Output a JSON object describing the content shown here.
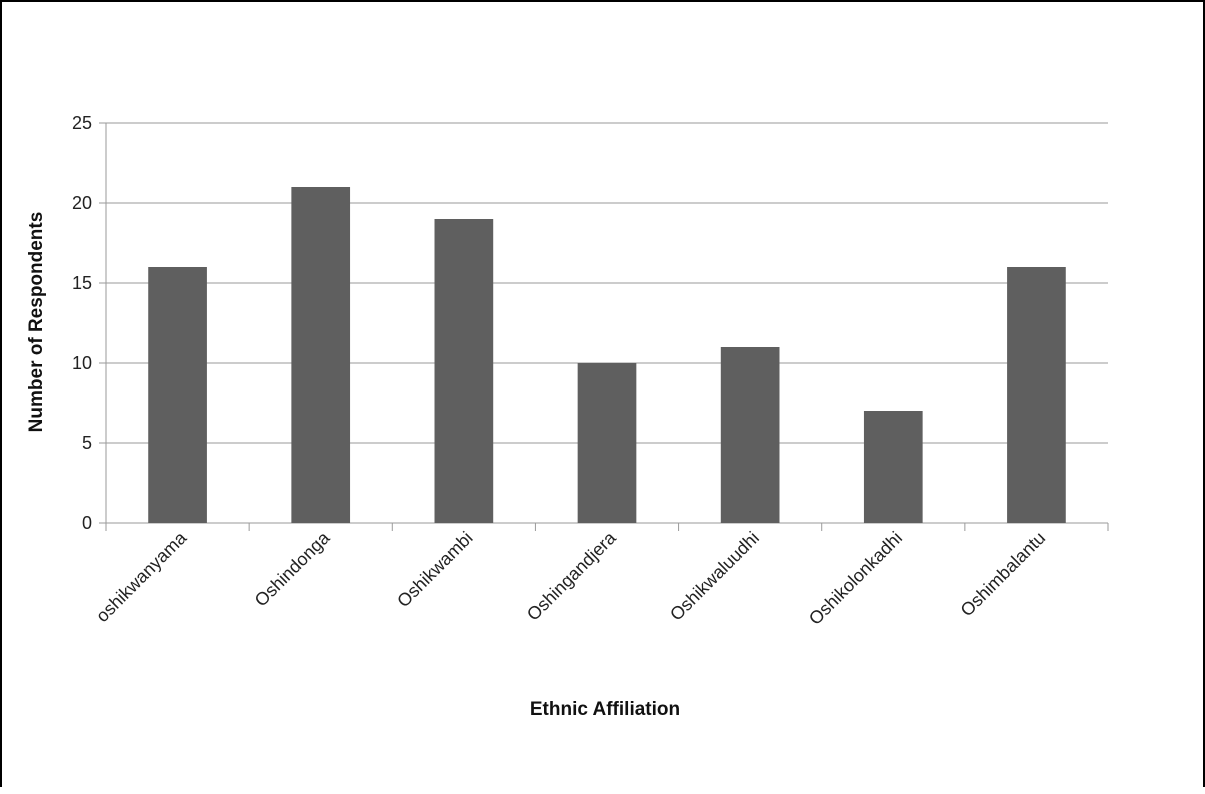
{
  "chart_data": {
    "type": "bar",
    "title": "",
    "xlabel": "Ethnic Affiliation",
    "ylabel": "Number of Respondents",
    "categories": [
      "oshikwanyama",
      "Oshindonga",
      "Oshikwambi",
      "Oshingandjera",
      "Oshikwaluudhi",
      "Oshikolonkadhi",
      "Oshimbalantu"
    ],
    "values": [
      16,
      21,
      19,
      10,
      11,
      7,
      16
    ],
    "ylim": [
      0,
      25
    ],
    "yticks": [
      0,
      5,
      10,
      15,
      20,
      25
    ],
    "grid": true,
    "legend": "none",
    "bar_color": "#5f5f5f",
    "grid_color": "#9a9a9a"
  }
}
